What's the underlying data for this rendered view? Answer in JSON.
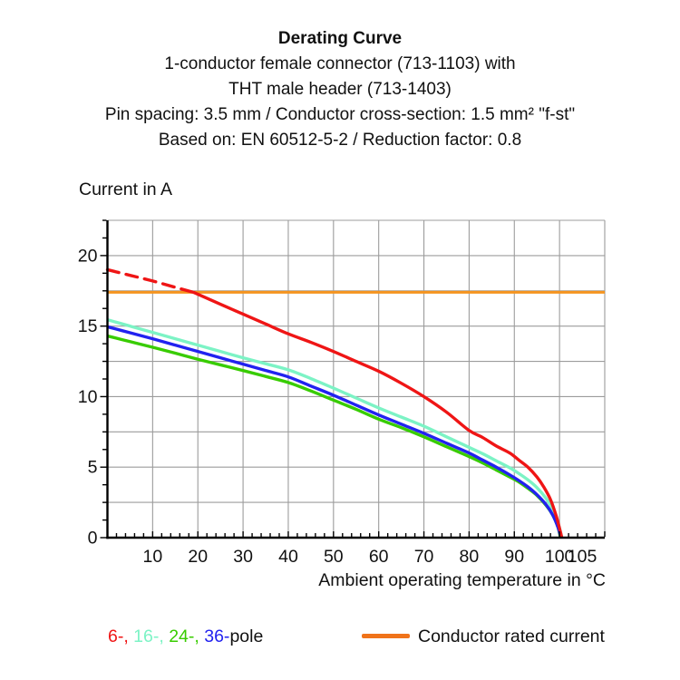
{
  "header": {
    "title": "Derating Curve",
    "subtitle_lines": [
      "1-conductor female connector (713-1103) with",
      "THT male header (713-1403)",
      "Pin spacing: 3.5 mm / Conductor cross-section: 1.5 mm² \"f-st\"",
      "Based on: EN 60512-5-2 / Reduction factor: 0.8"
    ]
  },
  "chart_data": {
    "type": "line",
    "title": "Derating Curve",
    "ylabel": "Current in A",
    "xlabel": "Ambient operating temperature in °C",
    "xlim": [
      0,
      110
    ],
    "ylim": [
      0,
      22.5
    ],
    "grid": true,
    "x_gridline_step": 10,
    "y_gridline_step": 2.5,
    "x_minor_tick_step": 2,
    "y_minor_tick_step": 1.25,
    "x_tick_labels": [
      10,
      20,
      30,
      40,
      50,
      60,
      70,
      80,
      90,
      100,
      105
    ],
    "y_tick_labels": [
      0,
      5,
      10,
      15,
      20
    ],
    "grid_color": "#9C9C9C",
    "axis_color": "#000000",
    "series": [
      {
        "name": "Conductor rated current",
        "color": "#F5941F",
        "width": 3,
        "points": [
          [
            0,
            17.4
          ],
          [
            110,
            17.4
          ]
        ]
      },
      {
        "name": "24-pole",
        "color": "#38CC00",
        "width": 3.4,
        "points": [
          [
            0,
            14.3
          ],
          [
            5,
            13.9
          ],
          [
            10,
            13.5
          ],
          [
            15,
            13.08
          ],
          [
            20,
            12.65
          ],
          [
            25,
            12.25
          ],
          [
            30,
            11.85
          ],
          [
            35,
            11.43
          ],
          [
            40,
            11.0
          ],
          [
            45,
            10.4
          ],
          [
            50,
            9.75
          ],
          [
            55,
            9.1
          ],
          [
            60,
            8.4
          ],
          [
            65,
            7.8
          ],
          [
            70,
            7.15
          ],
          [
            75,
            6.45
          ],
          [
            80,
            5.75
          ],
          [
            83,
            5.3
          ],
          [
            86,
            4.8
          ],
          [
            89,
            4.3
          ],
          [
            91,
            3.95
          ],
          [
            93,
            3.5
          ],
          [
            95,
            3.0
          ],
          [
            97,
            2.3
          ],
          [
            98.5,
            1.6
          ],
          [
            99.6,
            0.8
          ],
          [
            100.2,
            0
          ]
        ]
      },
      {
        "name": "16-pole",
        "color": "#7CF3C5",
        "width": 3.4,
        "points": [
          [
            0,
            15.45
          ],
          [
            5,
            15.0
          ],
          [
            10,
            14.55
          ],
          [
            15,
            14.1
          ],
          [
            20,
            13.65
          ],
          [
            25,
            13.2
          ],
          [
            30,
            12.75
          ],
          [
            35,
            12.33
          ],
          [
            40,
            11.9
          ],
          [
            45,
            11.28
          ],
          [
            50,
            10.6
          ],
          [
            55,
            9.9
          ],
          [
            60,
            9.2
          ],
          [
            65,
            8.55
          ],
          [
            70,
            7.9
          ],
          [
            75,
            7.15
          ],
          [
            80,
            6.4
          ],
          [
            83,
            5.95
          ],
          [
            86,
            5.45
          ],
          [
            89,
            4.95
          ],
          [
            91,
            4.55
          ],
          [
            93,
            4.1
          ],
          [
            95,
            3.55
          ],
          [
            97,
            2.8
          ],
          [
            98.5,
            2.0
          ],
          [
            99.8,
            0.9
          ],
          [
            100.5,
            0
          ]
        ]
      },
      {
        "name": "36-pole",
        "color": "#2222F0",
        "width": 3.4,
        "points": [
          [
            0,
            14.95
          ],
          [
            5,
            14.53
          ],
          [
            10,
            14.1
          ],
          [
            15,
            13.65
          ],
          [
            20,
            13.2
          ],
          [
            25,
            12.75
          ],
          [
            30,
            12.3
          ],
          [
            35,
            11.85
          ],
          [
            40,
            11.4
          ],
          [
            45,
            10.75
          ],
          [
            50,
            10.1
          ],
          [
            55,
            9.4
          ],
          [
            60,
            8.7
          ],
          [
            65,
            8.05
          ],
          [
            70,
            7.4
          ],
          [
            75,
            6.7
          ],
          [
            80,
            6.0
          ],
          [
            83,
            5.5
          ],
          [
            86,
            5.0
          ],
          [
            89,
            4.45
          ],
          [
            91,
            4.05
          ],
          [
            93,
            3.6
          ],
          [
            95,
            3.05
          ],
          [
            97,
            2.35
          ],
          [
            98.5,
            1.6
          ],
          [
            99.7,
            0.7
          ],
          [
            100.3,
            0
          ]
        ]
      },
      {
        "name": "6-pole",
        "color": "#EF1515",
        "width": 3.4,
        "dash_points": [
          [
            0,
            19.0
          ],
          [
            5,
            18.6
          ],
          [
            10,
            18.2
          ],
          [
            15,
            17.75
          ],
          [
            19,
            17.4
          ]
        ],
        "points": [
          [
            19,
            17.4
          ],
          [
            25,
            16.55
          ],
          [
            30,
            15.85
          ],
          [
            35,
            15.15
          ],
          [
            40,
            14.45
          ],
          [
            45,
            13.85
          ],
          [
            50,
            13.2
          ],
          [
            55,
            12.5
          ],
          [
            60,
            11.8
          ],
          [
            65,
            10.95
          ],
          [
            70,
            10.0
          ],
          [
            75,
            8.9
          ],
          [
            80,
            7.6
          ],
          [
            83,
            7.1
          ],
          [
            86,
            6.5
          ],
          [
            89,
            6.0
          ],
          [
            91,
            5.5
          ],
          [
            93,
            5.0
          ],
          [
            95,
            4.3
          ],
          [
            96.5,
            3.6
          ],
          [
            98,
            2.7
          ],
          [
            99.3,
            1.5
          ],
          [
            100.2,
            0.4
          ],
          [
            100.5,
            0
          ]
        ]
      }
    ]
  },
  "legend": {
    "pole_parts": [
      {
        "text": "6-,",
        "color": "#EF1515"
      },
      {
        "text": " 16-,",
        "color": "#7CF3C5"
      },
      {
        "text": " 24-,",
        "color": "#38CC00"
      },
      {
        "text": " 36-",
        "color": "#2222F0"
      },
      {
        "text": "pole",
        "color": "#111111"
      }
    ],
    "rated": {
      "label": "Conductor rated current",
      "swatch_color": "#F0731A"
    }
  }
}
